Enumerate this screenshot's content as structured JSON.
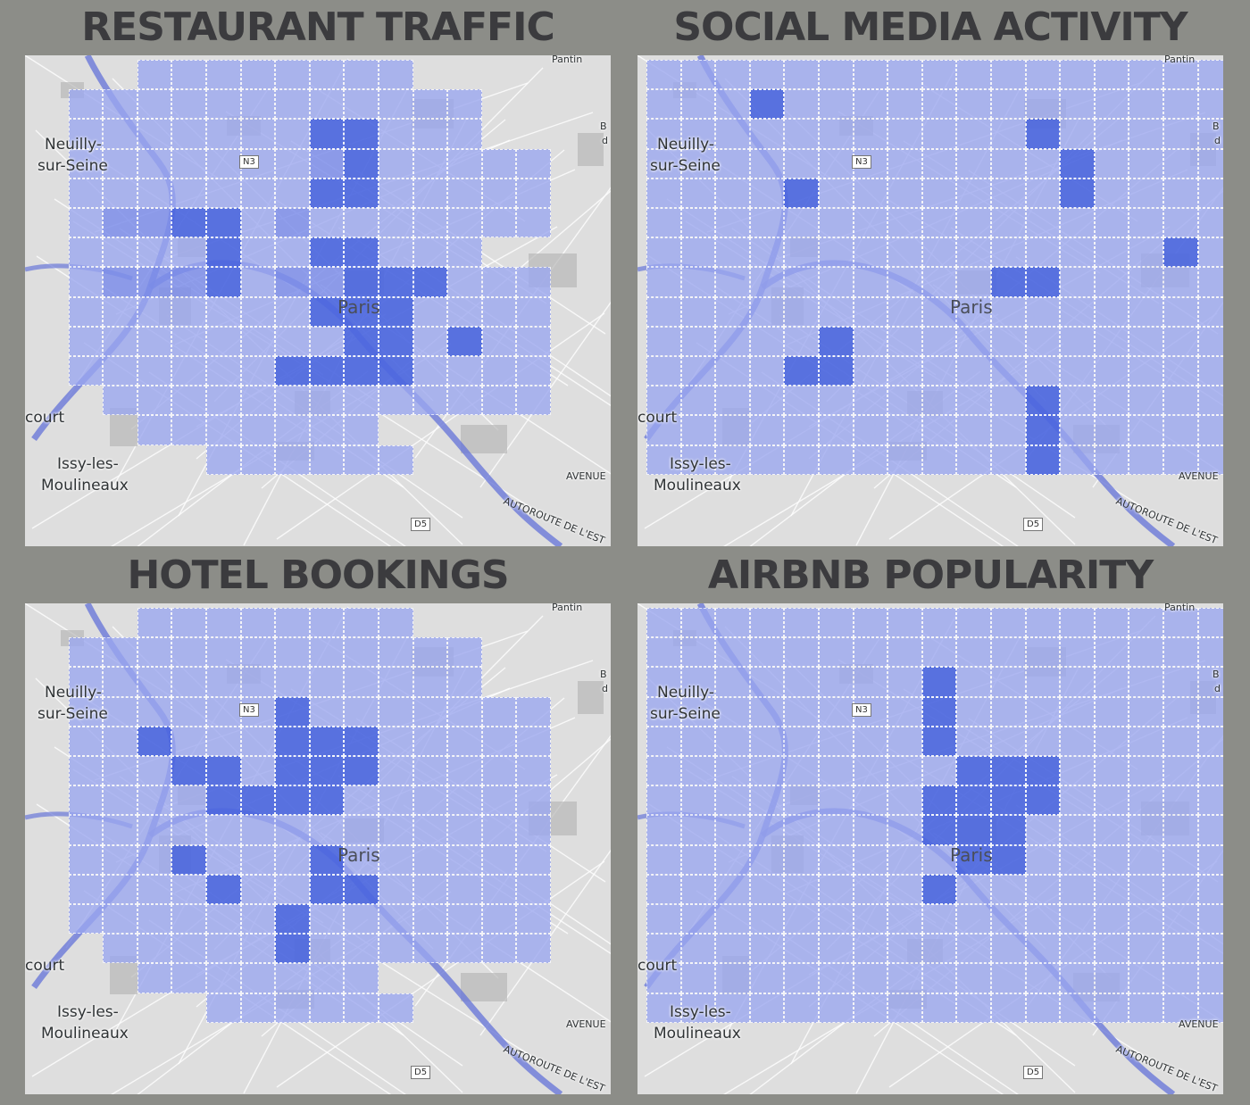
{
  "colors": {
    "background": "#8c8d88",
    "title": "#3b3b3e",
    "cell_low": "#9ba7f0",
    "cell_mid": "#7e8fea",
    "cell_high": "#4d68e0",
    "water": "#6a78d8"
  },
  "map_labels": {
    "neuilly_1": "Neuilly-",
    "neuilly_2": "sur-Seine",
    "court": "court",
    "issy_1": "Issy-les-",
    "issy_2": "Moulineaux",
    "paris": "Paris",
    "pantin": "Pantin",
    "road_n3": "N3",
    "road_d5": "D5",
    "avenue": "AVENUE",
    "autoroute": "AUTOROUTE DE L'EST",
    "edge_b": "B",
    "edge_d": "d"
  },
  "panels": [
    {
      "title": "RESTAURANT TRAFFIC",
      "grid": [
        "00011111111000000",
        "01111111111110000",
        "01111111111110000",
        "01111111211111100",
        "01111111111111100",
        "01222212111111100",
        "01111211111110000",
        "01222212221111100",
        "01111111211111100",
        "01111111111111100",
        "01111111111111100",
        "00111111111111100",
        "00011111110000000",
        "00000111111000000"
      ],
      "hot": [
        [
          2,
          8
        ],
        [
          2,
          9
        ],
        [
          3,
          9
        ],
        [
          4,
          8
        ],
        [
          4,
          9
        ],
        [
          5,
          4
        ],
        [
          5,
          5
        ],
        [
          6,
          5
        ],
        [
          6,
          8
        ],
        [
          6,
          9
        ],
        [
          7,
          5
        ],
        [
          7,
          9
        ],
        [
          7,
          10
        ],
        [
          7,
          11
        ],
        [
          8,
          8
        ],
        [
          8,
          9
        ],
        [
          8,
          10
        ],
        [
          9,
          9
        ],
        [
          9,
          10
        ],
        [
          9,
          12
        ],
        [
          10,
          7
        ],
        [
          10,
          8
        ],
        [
          10,
          9
        ],
        [
          10,
          10
        ]
      ]
    },
    {
      "title": "SOCIAL MEDIA ACTIVITY",
      "grid": [
        "11111111111111111",
        "11111111111111111",
        "11111111111111111",
        "11111111111111111",
        "11111111111111111",
        "11111111111111111",
        "11111111111111111",
        "11111111111111111",
        "11111111111111111",
        "11111111111111111",
        "11111111111111111",
        "11111111111111111",
        "11111111111111111",
        "11111111111111111"
      ],
      "hot": [
        [
          1,
          3
        ],
        [
          2,
          11
        ],
        [
          3,
          12
        ],
        [
          4,
          4
        ],
        [
          4,
          12
        ],
        [
          6,
          15
        ],
        [
          7,
          10
        ],
        [
          7,
          11
        ],
        [
          9,
          5
        ],
        [
          10,
          4
        ],
        [
          10,
          5
        ],
        [
          11,
          11
        ],
        [
          12,
          11
        ],
        [
          13,
          11
        ]
      ]
    },
    {
      "title": "HOTEL BOOKINGS",
      "grid": [
        "00011111111000000",
        "01111111111110000",
        "01111111111110000",
        "01111111111111100",
        "01111111111111100",
        "01111111111111100",
        "01111111111111100",
        "01111111111111100",
        "01111111111111100",
        "01111111111111100",
        "01111111111111100",
        "00111111111111100",
        "00011111110000000",
        "00000111111000000"
      ],
      "hot": [
        [
          3,
          7
        ],
        [
          4,
          3
        ],
        [
          4,
          7
        ],
        [
          4,
          8
        ],
        [
          4,
          9
        ],
        [
          5,
          4
        ],
        [
          5,
          5
        ],
        [
          5,
          7
        ],
        [
          5,
          8
        ],
        [
          5,
          9
        ],
        [
          6,
          5
        ],
        [
          6,
          6
        ],
        [
          6,
          7
        ],
        [
          6,
          8
        ],
        [
          8,
          4
        ],
        [
          8,
          8
        ],
        [
          9,
          5
        ],
        [
          9,
          8
        ],
        [
          9,
          9
        ],
        [
          10,
          7
        ],
        [
          11,
          7
        ]
      ]
    },
    {
      "title": "AIRBNB POPULARITY",
      "grid": [
        "11111111111111111",
        "11111111111111111",
        "11111111111111111",
        "11111111111111111",
        "11111111111111111",
        "11111111111111111",
        "11111111111111111",
        "11111111111111111",
        "11111111111111111",
        "11111111111111111",
        "11111111111111111",
        "11111111111111111",
        "11111111111111111",
        "11111111111111111"
      ],
      "hot": [
        [
          2,
          8
        ],
        [
          3,
          8
        ],
        [
          4,
          8
        ],
        [
          5,
          9
        ],
        [
          5,
          10
        ],
        [
          5,
          11
        ],
        [
          6,
          8
        ],
        [
          6,
          9
        ],
        [
          6,
          10
        ],
        [
          6,
          11
        ],
        [
          7,
          8
        ],
        [
          7,
          9
        ],
        [
          7,
          10
        ],
        [
          8,
          9
        ],
        [
          8,
          10
        ],
        [
          9,
          8
        ]
      ]
    }
  ]
}
